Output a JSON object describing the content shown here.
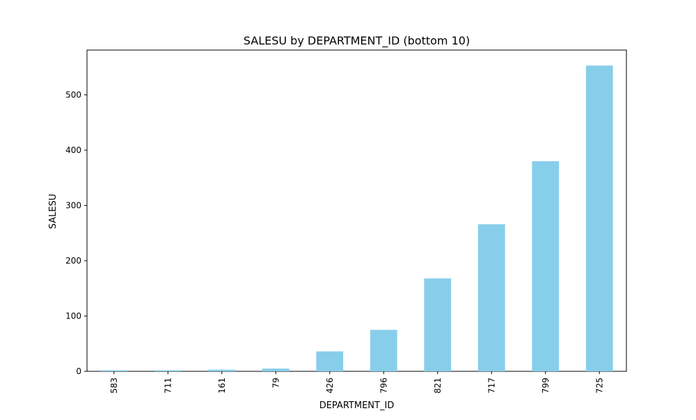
{
  "chart_data": {
    "type": "bar",
    "title": "SALESU by DEPARTMENT_ID (bottom 10)",
    "xlabel": "DEPARTMENT_ID",
    "ylabel": "SALESU",
    "categories": [
      "583",
      "711",
      "161",
      "79",
      "426",
      "796",
      "821",
      "717",
      "799",
      "725"
    ],
    "values": [
      2,
      2,
      3,
      5,
      36,
      75,
      168,
      266,
      380,
      553
    ],
    "ylim": [
      0,
      581
    ],
    "yticks": [
      0,
      100,
      200,
      300,
      400,
      500
    ],
    "grid": false,
    "bar_color": "#87CEEB"
  }
}
